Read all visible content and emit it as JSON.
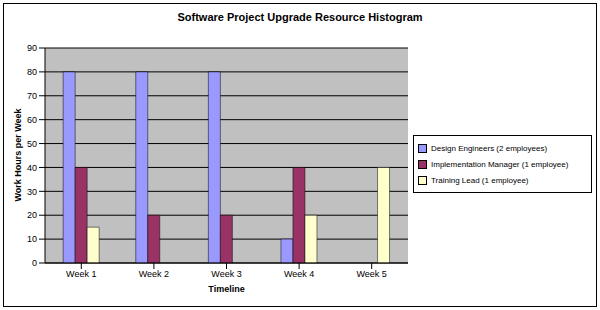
{
  "chart_data": {
    "type": "bar",
    "title": "Software Project Upgrade Resource Histogram",
    "x_label": "Timeline",
    "y_label": "Work Hours per Week",
    "categories": [
      "Week 1",
      "Week 2",
      "Week 3",
      "Week 4",
      "Week 5"
    ],
    "series": [
      {
        "name": "Design Engineers (2 employees)",
        "color": "#9999FF",
        "values": [
          80,
          80,
          80,
          10,
          0
        ]
      },
      {
        "name": "Implementation Manager (1 employee)",
        "color": "#993366",
        "values": [
          40,
          20,
          20,
          40,
          0
        ]
      },
      {
        "name": "Training Lead (1 employee)",
        "color": "#FFFFCC",
        "values": [
          15,
          0,
          0,
          20,
          40
        ]
      }
    ],
    "ylim": [
      0,
      90
    ],
    "yticks": [
      0,
      10,
      20,
      30,
      40,
      50,
      60,
      70,
      80,
      90
    ],
    "grid": true,
    "legend": "right"
  }
}
